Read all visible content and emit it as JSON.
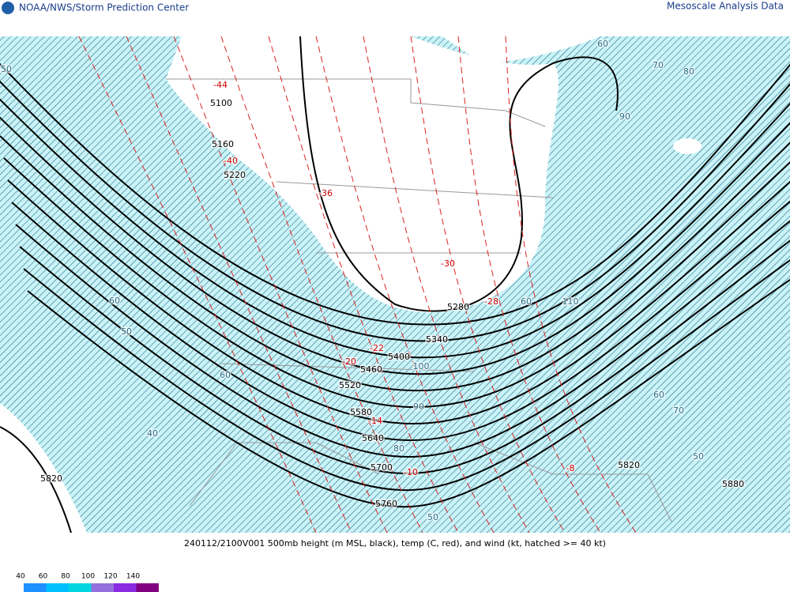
{
  "header": {
    "left": "NOAA/NWS/Storm Prediction Center",
    "right": "Mesoscale Analysis Data"
  },
  "caption": "240112/2100V001 500mb height (m MSL, black), temp (C, red), and wind (kt, hatched >= 40 kt)",
  "height_labels": [
    "5100",
    "5160",
    "5220",
    "5280",
    "5340",
    "5400",
    "5460",
    "5520",
    "5580",
    "5640",
    "5700",
    "5760",
    "5820",
    "5820",
    "5880"
  ],
  "temp_labels": [
    "-44",
    "-40",
    "-36",
    "-30",
    "-28",
    "-22",
    "-20",
    "-14",
    "-10",
    "-8"
  ],
  "wind_labels": [
    "50",
    "60",
    "70",
    "80",
    "90",
    "60",
    "50",
    "60",
    "40",
    "100",
    "90",
    "80",
    "60",
    "110",
    "60",
    "70",
    "50",
    "50"
  ],
  "legend": {
    "items": [
      {
        "value": 40,
        "color": "#1e90ff"
      },
      {
        "value": 60,
        "color": "#00bfff"
      },
      {
        "value": 80,
        "color": "#00d5e0"
      },
      {
        "value": 100,
        "color": "#9370db"
      },
      {
        "value": 120,
        "color": "#8a2be2"
      },
      {
        "value": 140,
        "color": "#800080"
      }
    ]
  }
}
